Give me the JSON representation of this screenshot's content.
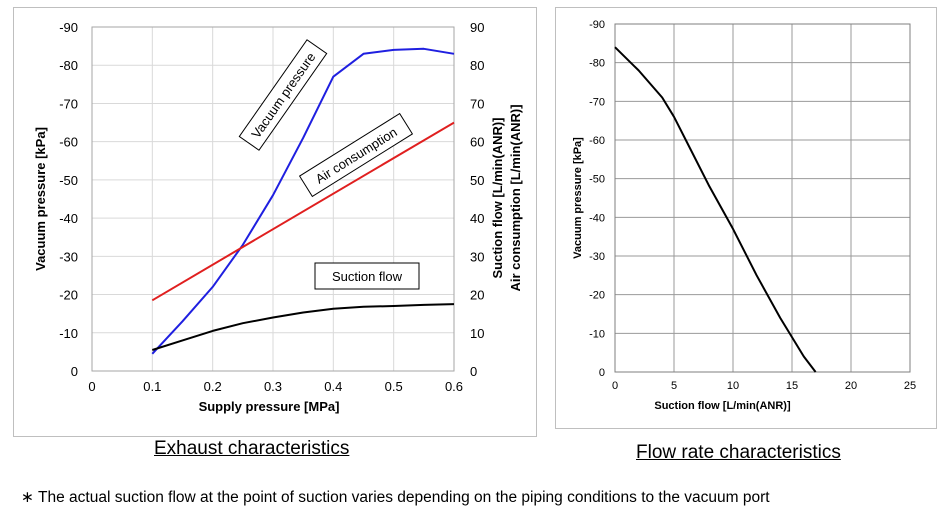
{
  "chart_data": [
    {
      "type": "line",
      "title": "Exhaust characteristics",
      "xlabel": "Supply pressure [MPa]",
      "ylabel": "Vacuum pressure [kPa]",
      "y2label": [
        "Suction flow  [L/min(ANR)]",
        "Air consumption [L/min(ANR)]"
      ],
      "xlim": [
        0,
        0.6
      ],
      "ylim": [
        0,
        -90
      ],
      "y2lim": [
        0,
        90
      ],
      "x_ticks": [
        "0",
        "0.1",
        "0.2",
        "0.3",
        "0.4",
        "0.5",
        "0.6"
      ],
      "y_ticks": [
        "0",
        "-10",
        "-20",
        "-30",
        "-40",
        "-50",
        "-60",
        "-70",
        "-80",
        "-90"
      ],
      "y2_ticks": [
        "0",
        "10",
        "20",
        "30",
        "40",
        "50",
        "60",
        "70",
        "80",
        "90"
      ],
      "grid": true,
      "series": [
        {
          "name": "Vacuum pressure",
          "color": "#1f1fe0",
          "axis": "left",
          "x": [
            0.1,
            0.15,
            0.2,
            0.25,
            0.3,
            0.35,
            0.4,
            0.45,
            0.5,
            0.55,
            0.6
          ],
          "y": [
            -4.5,
            -13,
            -22,
            -33,
            -46,
            -61,
            -77,
            -83,
            -84,
            -84.3,
            -83
          ]
        },
        {
          "name": "Air consumption",
          "color": "#e01f1f",
          "axis": "right",
          "x": [
            0.1,
            0.6
          ],
          "y": [
            18.5,
            65
          ]
        },
        {
          "name": "Suction flow",
          "color": "#000000",
          "axis": "right",
          "x": [
            0.1,
            0.15,
            0.2,
            0.25,
            0.3,
            0.35,
            0.4,
            0.45,
            0.5,
            0.55,
            0.6
          ],
          "y": [
            5.5,
            8,
            10.5,
            12.5,
            14,
            15.3,
            16.3,
            16.8,
            17,
            17.3,
            17.5
          ]
        }
      ],
      "annotations": [
        "Vacuum pressure",
        "Air consumption",
        "Suction flow"
      ]
    },
    {
      "type": "line",
      "title": "Flow rate characteristics",
      "xlabel": "Suction flow  [L/min(ANR)]",
      "ylabel": "Vacuum pressure  [kPa]",
      "xlim": [
        0,
        25
      ],
      "ylim": [
        0,
        -90
      ],
      "x_ticks": [
        "0",
        "5",
        "10",
        "15",
        "20",
        "25"
      ],
      "y_ticks": [
        "0",
        "-10",
        "-20",
        "-30",
        "-40",
        "-50",
        "-60",
        "-70",
        "-80",
        "-90"
      ],
      "grid": true,
      "series": [
        {
          "name": "Vacuum pressure",
          "color": "#000000",
          "x": [
            0,
            2,
            4,
            5,
            6,
            8,
            10,
            12,
            14,
            16,
            17
          ],
          "y": [
            -84,
            -78,
            -71,
            -66,
            -60,
            -48,
            -37,
            -25,
            -14,
            -4,
            0
          ]
        }
      ]
    }
  ],
  "footnote": {
    "star": "∗",
    "text": "The actual suction flow at the point of suction varies depending on the piping conditions to the vacuum port"
  }
}
